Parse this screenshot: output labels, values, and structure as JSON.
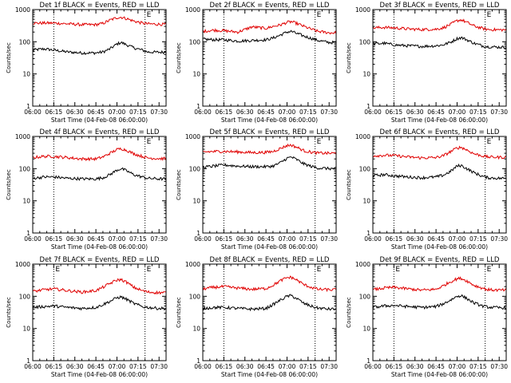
{
  "chart_data": [
    {
      "type": "line",
      "title": "Det 1f BLACK = Events, RED = LLD",
      "ylabel": "Counts/sec",
      "xlabel": "Start Time (04-Feb-08 06:00:00)",
      "ylog": true,
      "ylim": [
        1,
        1000
      ],
      "xlim_minutes": [
        0,
        95
      ],
      "x_tick_labels": [
        "06:00",
        "06:15",
        "06:30",
        "06:45",
        "07:00",
        "07:15",
        "07:30"
      ],
      "y_tick_labels": [
        "1",
        "10",
        "100",
        "1000"
      ],
      "markers": [
        {
          "x_minutes": 15,
          "label": ""
        },
        {
          "x_minutes": 80,
          "label": "E"
        }
      ],
      "series": [
        {
          "color": "#000000",
          "x_minutes": [
            0,
            8,
            15,
            25,
            35,
            45,
            50,
            55,
            60,
            63,
            67,
            72,
            78,
            82,
            90,
            95
          ],
          "values": [
            55,
            60,
            55,
            48,
            45,
            45,
            48,
            60,
            85,
            95,
            80,
            65,
            55,
            48,
            47,
            48
          ]
        },
        {
          "color": "#e00000",
          "x_minutes": [
            0,
            8,
            15,
            25,
            35,
            45,
            50,
            55,
            60,
            63,
            67,
            72,
            78,
            82,
            90,
            95
          ],
          "values": [
            380,
            380,
            380,
            360,
            340,
            340,
            370,
            470,
            560,
            580,
            520,
            440,
            380,
            360,
            350,
            345
          ]
        }
      ]
    },
    {
      "type": "line",
      "title": "Det 2f BLACK = Events, RED = LLD",
      "ylabel": "Counts/sec",
      "xlabel": "Start Time (04-Feb-08 06:00:00)",
      "ylog": true,
      "ylim": [
        1,
        1000
      ],
      "xlim_minutes": [
        0,
        95
      ],
      "x_tick_labels": [
        "06:00",
        "06:15",
        "06:30",
        "06:45",
        "07:00",
        "07:15",
        "07:30"
      ],
      "y_tick_labels": [
        "1",
        "10",
        "100",
        "1000"
      ],
      "markers": [
        {
          "x_minutes": 15,
          "label": ""
        },
        {
          "x_minutes": 80,
          "label": "E"
        }
      ],
      "series": [
        {
          "color": "#000000",
          "x_minutes": [
            0,
            8,
            15,
            25,
            35,
            45,
            50,
            55,
            60,
            63,
            67,
            72,
            78,
            82,
            90,
            95
          ],
          "values": [
            120,
            115,
            115,
            105,
            110,
            115,
            130,
            160,
            200,
            210,
            180,
            150,
            125,
            110,
            95,
            95
          ]
        },
        {
          "color": "#e00000",
          "x_minutes": [
            0,
            8,
            15,
            25,
            35,
            45,
            50,
            55,
            60,
            63,
            67,
            72,
            78,
            82,
            90,
            95
          ],
          "values": [
            210,
            230,
            220,
            200,
            290,
            260,
            300,
            330,
            400,
            420,
            370,
            300,
            240,
            210,
            190,
            190
          ]
        }
      ]
    },
    {
      "type": "line",
      "title": "Det 3f BLACK = Events, RED = LLD",
      "ylabel": "Counts/sec",
      "xlabel": "Start Time (04-Feb-08 06:00:00)",
      "ylog": true,
      "ylim": [
        1,
        1000
      ],
      "xlim_minutes": [
        0,
        95
      ],
      "x_tick_labels": [
        "06:00",
        "06:15",
        "06:30",
        "06:45",
        "07:00",
        "07:15",
        "07:30"
      ],
      "y_tick_labels": [
        "1",
        "10",
        "100",
        "1000"
      ],
      "markers": [
        {
          "x_minutes": 15,
          "label": ""
        },
        {
          "x_minutes": 80,
          "label": "E"
        }
      ],
      "series": [
        {
          "color": "#000000",
          "x_minutes": [
            0,
            8,
            15,
            25,
            35,
            45,
            50,
            55,
            60,
            63,
            67,
            72,
            78,
            82,
            90,
            95
          ],
          "values": [
            85,
            90,
            80,
            75,
            72,
            75,
            80,
            95,
            125,
            135,
            115,
            90,
            75,
            70,
            68,
            68
          ]
        },
        {
          "color": "#e00000",
          "x_minutes": [
            0,
            8,
            15,
            25,
            35,
            45,
            50,
            55,
            60,
            63,
            67,
            72,
            78,
            82,
            90,
            95
          ],
          "values": [
            270,
            280,
            270,
            250,
            240,
            245,
            270,
            340,
            450,
            480,
            400,
            310,
            260,
            240,
            235,
            235
          ]
        }
      ]
    },
    {
      "type": "line",
      "title": "Det 4f BLACK = Events, RED = LLD",
      "ylabel": "Counts/sec",
      "xlabel": "Start Time (04-Feb-08 06:00:00)",
      "ylog": true,
      "ylim": [
        1,
        1000
      ],
      "xlim_minutes": [
        0,
        95
      ],
      "x_tick_labels": [
        "06:00",
        "06:15",
        "06:30",
        "06:45",
        "07:00",
        "07:15",
        "07:30"
      ],
      "y_tick_labels": [
        "1",
        "10",
        "100",
        "1000"
      ],
      "markers": [
        {
          "x_minutes": 15,
          "label": ""
        },
        {
          "x_minutes": 80,
          "label": "E"
        }
      ],
      "series": [
        {
          "color": "#000000",
          "x_minutes": [
            0,
            8,
            15,
            25,
            35,
            45,
            50,
            55,
            60,
            63,
            67,
            72,
            78,
            82,
            90,
            95
          ],
          "values": [
            50,
            55,
            55,
            50,
            48,
            48,
            52,
            65,
            90,
            100,
            85,
            65,
            55,
            50,
            48,
            48
          ]
        },
        {
          "color": "#e00000",
          "x_minutes": [
            0,
            8,
            15,
            25,
            35,
            45,
            50,
            55,
            60,
            63,
            67,
            72,
            78,
            82,
            90,
            95
          ],
          "values": [
            220,
            240,
            240,
            220,
            200,
            200,
            230,
            300,
            390,
            420,
            370,
            290,
            240,
            215,
            205,
            205
          ]
        }
      ]
    },
    {
      "type": "line",
      "title": "Det 5f BLACK = Events, RED = LLD",
      "ylabel": "Counts/sec",
      "xlabel": "Start Time (04-Feb-08 06:00:00)",
      "ylog": true,
      "ylim": [
        1,
        1000
      ],
      "xlim_minutes": [
        0,
        95
      ],
      "x_tick_labels": [
        "06:00",
        "06:15",
        "06:30",
        "06:45",
        "07:00",
        "07:15",
        "07:30"
      ],
      "y_tick_labels": [
        "1",
        "10",
        "100",
        "1000"
      ],
      "markers": [
        {
          "x_minutes": 15,
          "label": ""
        },
        {
          "x_minutes": 80,
          "label": "E"
        }
      ],
      "series": [
        {
          "color": "#000000",
          "x_minutes": [
            0,
            8,
            15,
            25,
            35,
            45,
            50,
            55,
            60,
            63,
            67,
            72,
            78,
            82,
            90,
            95
          ],
          "values": [
            110,
            120,
            130,
            120,
            115,
            115,
            120,
            150,
            210,
            230,
            190,
            140,
            115,
            105,
            100,
            100
          ]
        },
        {
          "color": "#e00000",
          "x_minutes": [
            0,
            8,
            15,
            25,
            35,
            45,
            50,
            55,
            60,
            63,
            67,
            72,
            78,
            82,
            90,
            95
          ],
          "values": [
            330,
            340,
            345,
            330,
            315,
            320,
            340,
            420,
            520,
            540,
            460,
            360,
            320,
            305,
            300,
            300
          ]
        }
      ]
    },
    {
      "type": "line",
      "title": "Det 6f BLACK = Events, RED = LLD",
      "ylabel": "Counts/sec",
      "xlabel": "Start Time (04-Feb-08 06:00:00)",
      "ylog": true,
      "ylim": [
        1,
        1000
      ],
      "xlim_minutes": [
        0,
        95
      ],
      "x_tick_labels": [
        "06:00",
        "06:15",
        "06:30",
        "06:45",
        "07:00",
        "07:15",
        "07:30"
      ],
      "y_tick_labels": [
        "1",
        "10",
        "100",
        "1000"
      ],
      "markers": [
        {
          "x_minutes": 15,
          "label": ""
        },
        {
          "x_minutes": 80,
          "label": "E"
        }
      ],
      "series": [
        {
          "color": "#000000",
          "x_minutes": [
            0,
            8,
            15,
            25,
            35,
            45,
            50,
            55,
            60,
            63,
            67,
            72,
            78,
            82,
            90,
            95
          ],
          "values": [
            60,
            65,
            60,
            55,
            52,
            55,
            62,
            80,
            120,
            125,
            100,
            75,
            58,
            52,
            50,
            50
          ]
        },
        {
          "color": "#e00000",
          "x_minutes": [
            0,
            8,
            15,
            25,
            35,
            45,
            50,
            55,
            60,
            63,
            67,
            72,
            78,
            82,
            90,
            95
          ],
          "values": [
            250,
            260,
            255,
            230,
            215,
            220,
            250,
            330,
            440,
            460,
            380,
            290,
            250,
            230,
            225,
            225
          ]
        }
      ]
    },
    {
      "type": "line",
      "title": "Det 7f BLACK = Events, RED = LLD",
      "ylabel": "Counts/sec",
      "xlabel": "Start Time (04-Feb-08 06:00:00)",
      "ylog": true,
      "ylim": [
        1,
        1000
      ],
      "xlim_minutes": [
        0,
        95
      ],
      "x_tick_labels": [
        "06:00",
        "06:15",
        "06:30",
        "06:45",
        "07:00",
        "07:15",
        "07:30"
      ],
      "y_tick_labels": [
        "1",
        "10",
        "100",
        "1000"
      ],
      "markers": [
        {
          "x_minutes": 15,
          "label": "E"
        },
        {
          "x_minutes": 80,
          "label": "E"
        }
      ],
      "series": [
        {
          "color": "#000000",
          "x_minutes": [
            0,
            8,
            15,
            25,
            35,
            45,
            50,
            55,
            60,
            63,
            67,
            72,
            78,
            82,
            90,
            95
          ],
          "values": [
            45,
            48,
            50,
            45,
            42,
            45,
            55,
            70,
            90,
            95,
            80,
            60,
            48,
            45,
            42,
            42
          ]
        },
        {
          "color": "#e00000",
          "x_minutes": [
            0,
            8,
            15,
            25,
            35,
            45,
            50,
            55,
            60,
            63,
            67,
            72,
            78,
            82,
            90,
            95
          ],
          "values": [
            140,
            160,
            170,
            150,
            135,
            150,
            190,
            250,
            320,
            330,
            270,
            190,
            150,
            135,
            130,
            130
          ]
        }
      ]
    },
    {
      "type": "line",
      "title": "Det 8f BLACK = Events, RED = LLD",
      "ylabel": "Counts/sec",
      "xlabel": "Start Time (04-Feb-08 06:00:00)",
      "ylog": true,
      "ylim": [
        1,
        1000
      ],
      "xlim_minutes": [
        0,
        95
      ],
      "x_tick_labels": [
        "06:00",
        "06:15",
        "06:30",
        "06:45",
        "07:00",
        "07:15",
        "07:30"
      ],
      "y_tick_labels": [
        "1",
        "10",
        "100",
        "1000"
      ],
      "markers": [
        {
          "x_minutes": 15,
          "label": ""
        },
        {
          "x_minutes": 80,
          "label": "E"
        }
      ],
      "series": [
        {
          "color": "#000000",
          "x_minutes": [
            0,
            8,
            15,
            25,
            35,
            45,
            50,
            55,
            60,
            63,
            67,
            72,
            78,
            82,
            90,
            95
          ],
          "values": [
            42,
            45,
            45,
            42,
            40,
            42,
            55,
            75,
            100,
            105,
            85,
            60,
            48,
            43,
            40,
            40
          ]
        },
        {
          "color": "#e00000",
          "x_minutes": [
            0,
            8,
            15,
            25,
            35,
            45,
            50,
            55,
            60,
            63,
            67,
            72,
            78,
            82,
            90,
            95
          ],
          "values": [
            170,
            190,
            200,
            180,
            165,
            175,
            220,
            300,
            380,
            390,
            320,
            230,
            185,
            165,
            160,
            160
          ]
        }
      ]
    },
    {
      "type": "line",
      "title": "Det 9f BLACK = Events, RED = LLD",
      "ylabel": "Counts/sec",
      "xlabel": "Start Time (04-Feb-08 06:00:00)",
      "ylog": true,
      "ylim": [
        1,
        1000
      ],
      "xlim_minutes": [
        0,
        95
      ],
      "x_tick_labels": [
        "06:00",
        "06:15",
        "06:30",
        "06:45",
        "07:00",
        "07:15",
        "07:30"
      ],
      "y_tick_labels": [
        "1",
        "10",
        "100",
        "1000"
      ],
      "markers": [
        {
          "x_minutes": 15,
          "label": "E"
        },
        {
          "x_minutes": 80,
          "label": "E"
        }
      ],
      "series": [
        {
          "color": "#000000",
          "x_minutes": [
            0,
            8,
            15,
            25,
            35,
            45,
            50,
            55,
            60,
            63,
            67,
            72,
            78,
            82,
            90,
            95
          ],
          "values": [
            45,
            50,
            52,
            48,
            45,
            48,
            58,
            75,
            100,
            105,
            85,
            62,
            50,
            46,
            44,
            44
          ]
        },
        {
          "color": "#e00000",
          "x_minutes": [
            0,
            8,
            15,
            25,
            35,
            45,
            50,
            55,
            60,
            63,
            67,
            72,
            78,
            82,
            90,
            95
          ],
          "values": [
            160,
            180,
            190,
            170,
            155,
            165,
            210,
            280,
            350,
            360,
            300,
            220,
            180,
            160,
            155,
            155
          ]
        }
      ]
    }
  ]
}
